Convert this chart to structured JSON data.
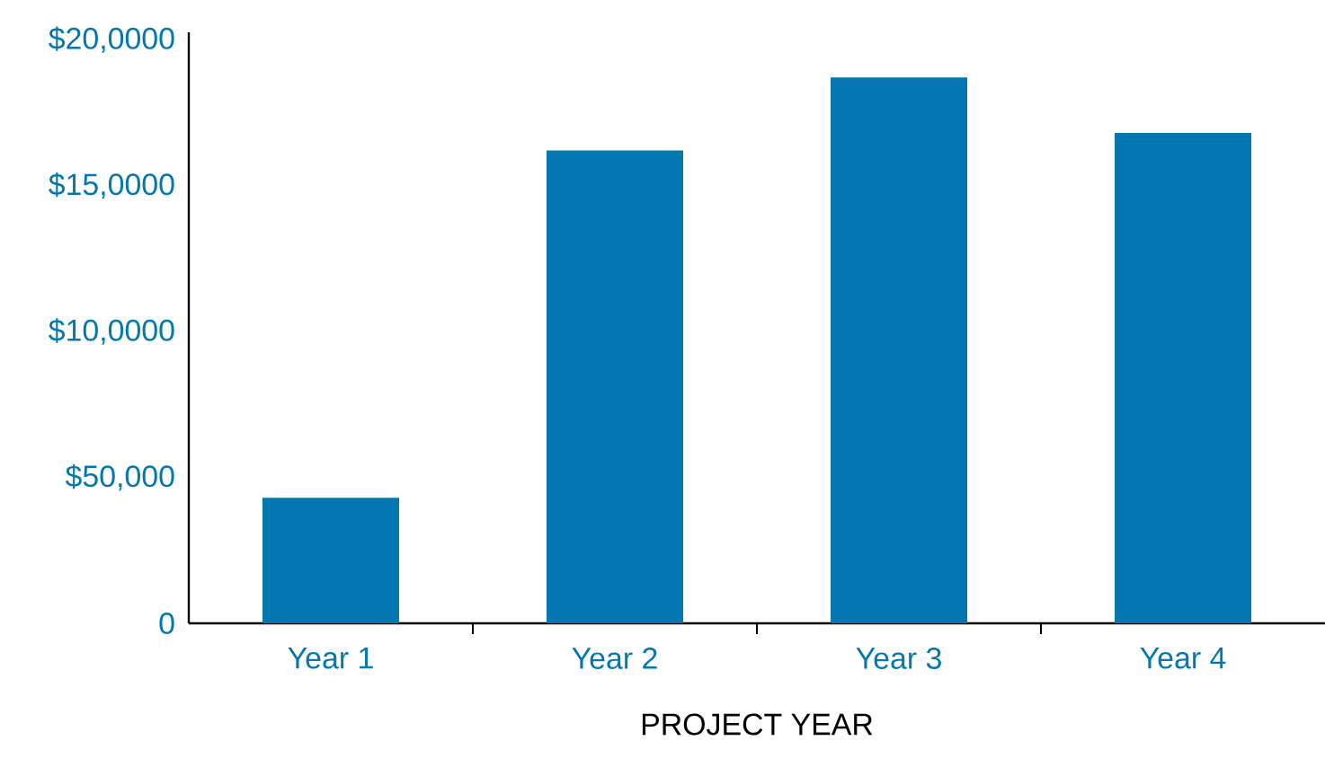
{
  "chart_data": {
    "type": "bar",
    "xlabel": "PROJECT YEAR",
    "categories": [
      "Year 1",
      "Year 2",
      "Year 3",
      "Year 4"
    ],
    "values": [
      43000,
      162000,
      187000,
      168000
    ],
    "color": "#0577b0",
    "ylim": [
      0,
      202500
    ],
    "yticks": [
      0,
      {
        "value": 50000,
        "label": "$50,000"
      },
      {
        "value": 100000,
        "label": "$10,0000"
      },
      {
        "value": 150000,
        "label": "$15,0000"
      },
      {
        "value": 200000,
        "label": "$20,0000"
      }
    ],
    "grid": false
  }
}
